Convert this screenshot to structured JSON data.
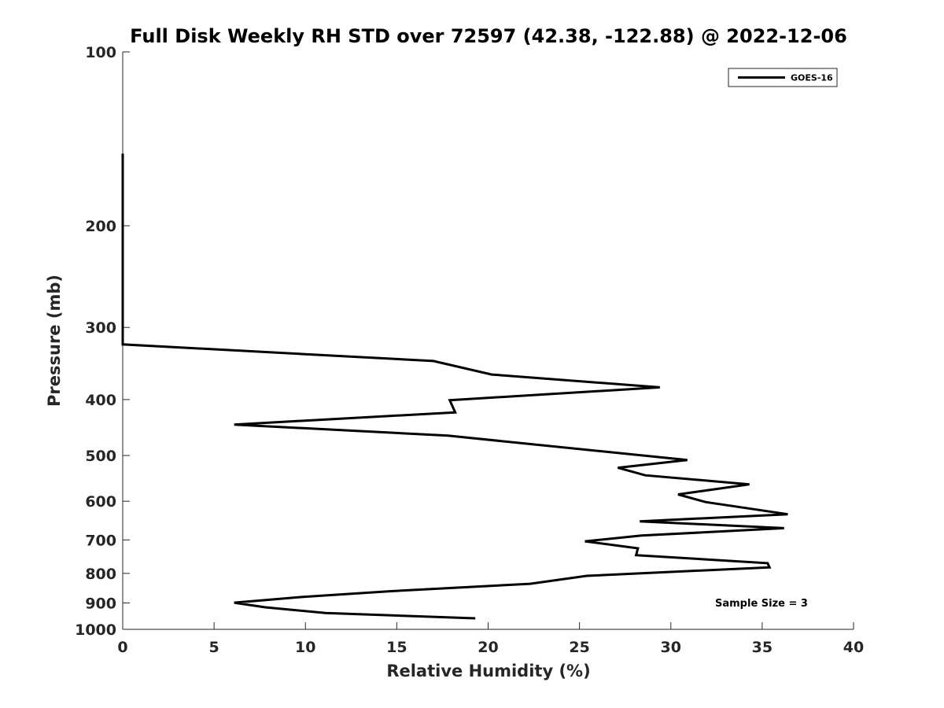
{
  "chart_data": {
    "type": "line",
    "title": "Full Disk Weekly RH STD over 72597 (42.38, -122.88) @ 2022-12-06",
    "xlabel": "Relative Humidity (%)",
    "ylabel": "Pressure (mb)",
    "xlim": [
      0,
      40
    ],
    "ylim": [
      100,
      1000
    ],
    "yscale": "log",
    "y_reversed": true,
    "grid": false,
    "x_ticks": [
      0,
      5,
      10,
      15,
      20,
      25,
      30,
      35,
      40
    ],
    "x_tick_labels": [
      "0",
      "5",
      "10",
      "15",
      "20",
      "25",
      "30",
      "35",
      "40"
    ],
    "y_ticks": [
      100,
      200,
      300,
      400,
      500,
      600,
      700,
      800,
      900,
      1000
    ],
    "y_tick_labels": [
      "100",
      "200",
      "300",
      "400",
      "500",
      "600",
      "700",
      "800",
      "900",
      "1000"
    ],
    "legend": {
      "position": "top-right",
      "entries": [
        "GOES-16"
      ]
    },
    "annotation": "Sample Size = 3",
    "series": [
      {
        "name": "GOES-16",
        "color": "#000000",
        "points": [
          {
            "x": 0.0,
            "p": 150
          },
          {
            "x": 0.0,
            "p": 200
          },
          {
            "x": 0.0,
            "p": 250
          },
          {
            "x": 0.0,
            "p": 300
          },
          {
            "x": 0.0,
            "p": 321
          },
          {
            "x": 17.0,
            "p": 343
          },
          {
            "x": 20.2,
            "p": 362
          },
          {
            "x": 29.4,
            "p": 381
          },
          {
            "x": 17.9,
            "p": 401
          },
          {
            "x": 18.2,
            "p": 421
          },
          {
            "x": 6.1,
            "p": 442
          },
          {
            "x": 17.8,
            "p": 462
          },
          {
            "x": 30.9,
            "p": 509
          },
          {
            "x": 27.1,
            "p": 525
          },
          {
            "x": 28.6,
            "p": 541
          },
          {
            "x": 34.3,
            "p": 561
          },
          {
            "x": 30.4,
            "p": 584
          },
          {
            "x": 31.9,
            "p": 602
          },
          {
            "x": 36.4,
            "p": 632
          },
          {
            "x": 28.3,
            "p": 650
          },
          {
            "x": 36.2,
            "p": 668
          },
          {
            "x": 28.4,
            "p": 688
          },
          {
            "x": 25.3,
            "p": 704
          },
          {
            "x": 28.2,
            "p": 724
          },
          {
            "x": 28.1,
            "p": 744
          },
          {
            "x": 35.3,
            "p": 768
          },
          {
            "x": 35.4,
            "p": 781
          },
          {
            "x": 25.4,
            "p": 808
          },
          {
            "x": 22.3,
            "p": 834
          },
          {
            "x": 14.6,
            "p": 859
          },
          {
            "x": 9.8,
            "p": 879
          },
          {
            "x": 6.1,
            "p": 899
          },
          {
            "x": 7.8,
            "p": 916
          },
          {
            "x": 11.1,
            "p": 937
          },
          {
            "x": 19.3,
            "p": 957
          }
        ]
      }
    ]
  }
}
